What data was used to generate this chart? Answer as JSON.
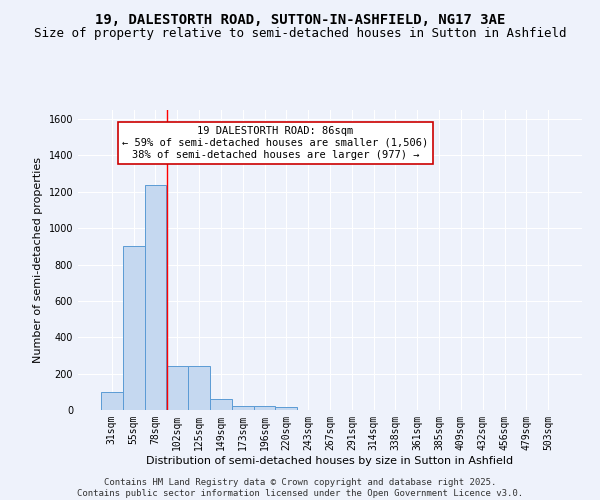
{
  "title": "19, DALESTORTH ROAD, SUTTON-IN-ASHFIELD, NG17 3AE",
  "subtitle": "Size of property relative to semi-detached houses in Sutton in Ashfield",
  "xlabel": "Distribution of semi-detached houses by size in Sutton in Ashfield",
  "ylabel": "Number of semi-detached properties",
  "categories": [
    "31sqm",
    "55sqm",
    "78sqm",
    "102sqm",
    "125sqm",
    "149sqm",
    "173sqm",
    "196sqm",
    "220sqm",
    "243sqm",
    "267sqm",
    "291sqm",
    "314sqm",
    "338sqm",
    "361sqm",
    "385sqm",
    "409sqm",
    "432sqm",
    "456sqm",
    "479sqm",
    "503sqm"
  ],
  "values": [
    100,
    900,
    1240,
    240,
    240,
    60,
    20,
    20,
    15,
    0,
    0,
    0,
    0,
    0,
    0,
    0,
    0,
    0,
    0,
    0,
    0
  ],
  "bar_color": "#c5d8f0",
  "bar_edge_color": "#5b9bd5",
  "background_color": "#eef2fb",
  "grid_color": "#ffffff",
  "red_line_x": 2.55,
  "annotation_line1": "19 DALESTORTH ROAD: 86sqm",
  "annotation_line2": "← 59% of semi-detached houses are smaller (1,506)",
  "annotation_line3": "38% of semi-detached houses are larger (977) →",
  "annotation_box_color": "#ffffff",
  "annotation_box_edge": "#cc0000",
  "ylim": [
    0,
    1650
  ],
  "yticks": [
    0,
    200,
    400,
    600,
    800,
    1000,
    1200,
    1400,
    1600
  ],
  "footer_line1": "Contains HM Land Registry data © Crown copyright and database right 2025.",
  "footer_line2": "Contains public sector information licensed under the Open Government Licence v3.0.",
  "title_fontsize": 10,
  "subtitle_fontsize": 9,
  "axis_label_fontsize": 8,
  "tick_fontsize": 7,
  "annotation_fontsize": 7.5,
  "footer_fontsize": 6.5
}
